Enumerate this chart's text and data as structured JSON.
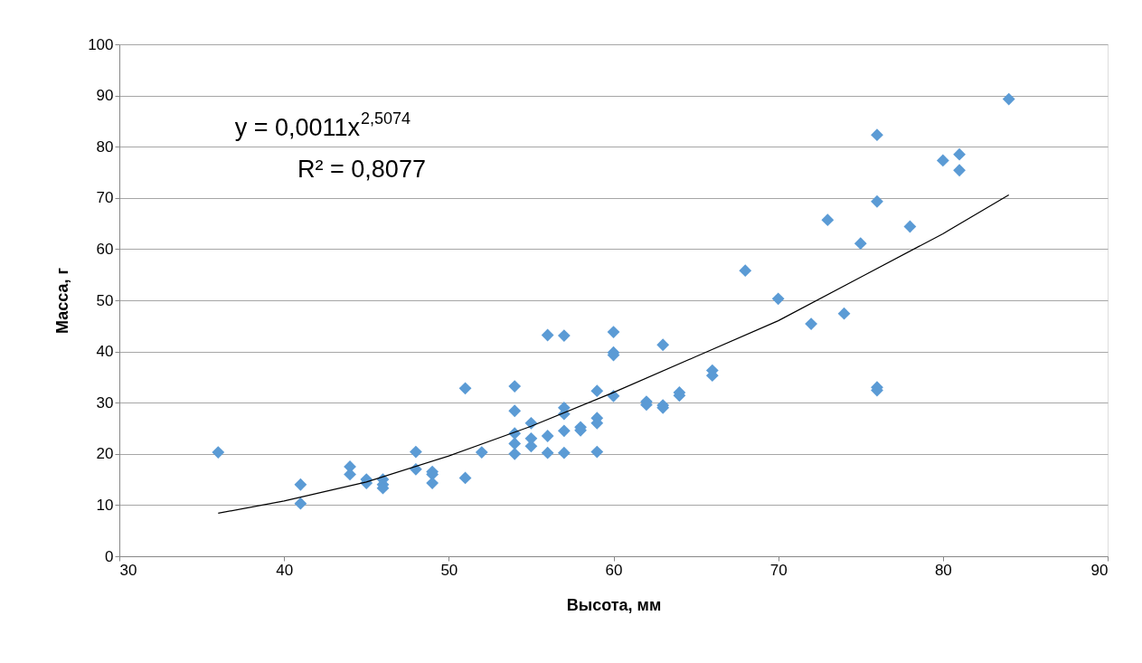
{
  "chart_data": {
    "type": "scatter",
    "xlabel": "Высота, мм",
    "ylabel": "Масса, г",
    "annotations": [
      "y = 0,0011x$^{2,5074}$",
      "R² = 0,8077"
    ],
    "xlim": [
      30,
      90
    ],
    "xticks": [
      30,
      40,
      50,
      60,
      70,
      80,
      90
    ],
    "ylim": [
      0,
      100
    ],
    "yticks": [
      0,
      10,
      20,
      30,
      40,
      50,
      60,
      70,
      80,
      90,
      100
    ],
    "grid": "y",
    "marker": "diamond",
    "series": [
      {
        "color": "#5b9bd5",
        "x": [
          36,
          41,
          41,
          44,
          44,
          45,
          45,
          46,
          46,
          46,
          48,
          48,
          49,
          49,
          49,
          51,
          51,
          52,
          54,
          54,
          54,
          54,
          54,
          55,
          55,
          55,
          56,
          56,
          56,
          57,
          57,
          57,
          57,
          57,
          58,
          58,
          59,
          59,
          59,
          59,
          60,
          60,
          60,
          60,
          62,
          62,
          63,
          63,
          63,
          64,
          64,
          66,
          66,
          68,
          70,
          72,
          73,
          74,
          75,
          76,
          76,
          76,
          76,
          78,
          80,
          81,
          81,
          84
        ],
        "values": [
          20.3,
          14,
          10.3,
          17.5,
          16,
          15,
          14.3,
          15,
          14,
          13.3,
          20.4,
          17,
          16.5,
          16,
          14.3,
          32.8,
          15.3,
          20.3,
          33.2,
          28.4,
          24,
          22,
          20,
          26,
          23,
          21.5,
          43.2,
          23.5,
          20.2,
          43.1,
          29,
          27.8,
          24.5,
          20.2,
          25.2,
          24.6,
          32.3,
          27,
          26,
          20.4,
          43.8,
          39.8,
          39.3,
          31.3,
          30.2,
          29.6,
          41.3,
          29.5,
          29,
          32,
          31.4,
          36.3,
          35.3,
          55.8,
          50.3,
          45.4,
          65.7,
          47.4,
          61.1,
          82.3,
          69.3,
          33,
          32.4,
          64.4,
          77.3,
          78.5,
          75.4,
          89.3
        ]
      },
      {
        "type": "line",
        "color": "#000000",
        "line_style": "solid",
        "marker": "none",
        "x": [
          36,
          40,
          45,
          50,
          55,
          60,
          65,
          70,
          75,
          80,
          84
        ],
        "values": [
          8.4,
          10.8,
          14.5,
          19.6,
          25.4,
          32,
          39,
          46,
          54.5,
          63,
          70.6
        ]
      }
    ]
  }
}
